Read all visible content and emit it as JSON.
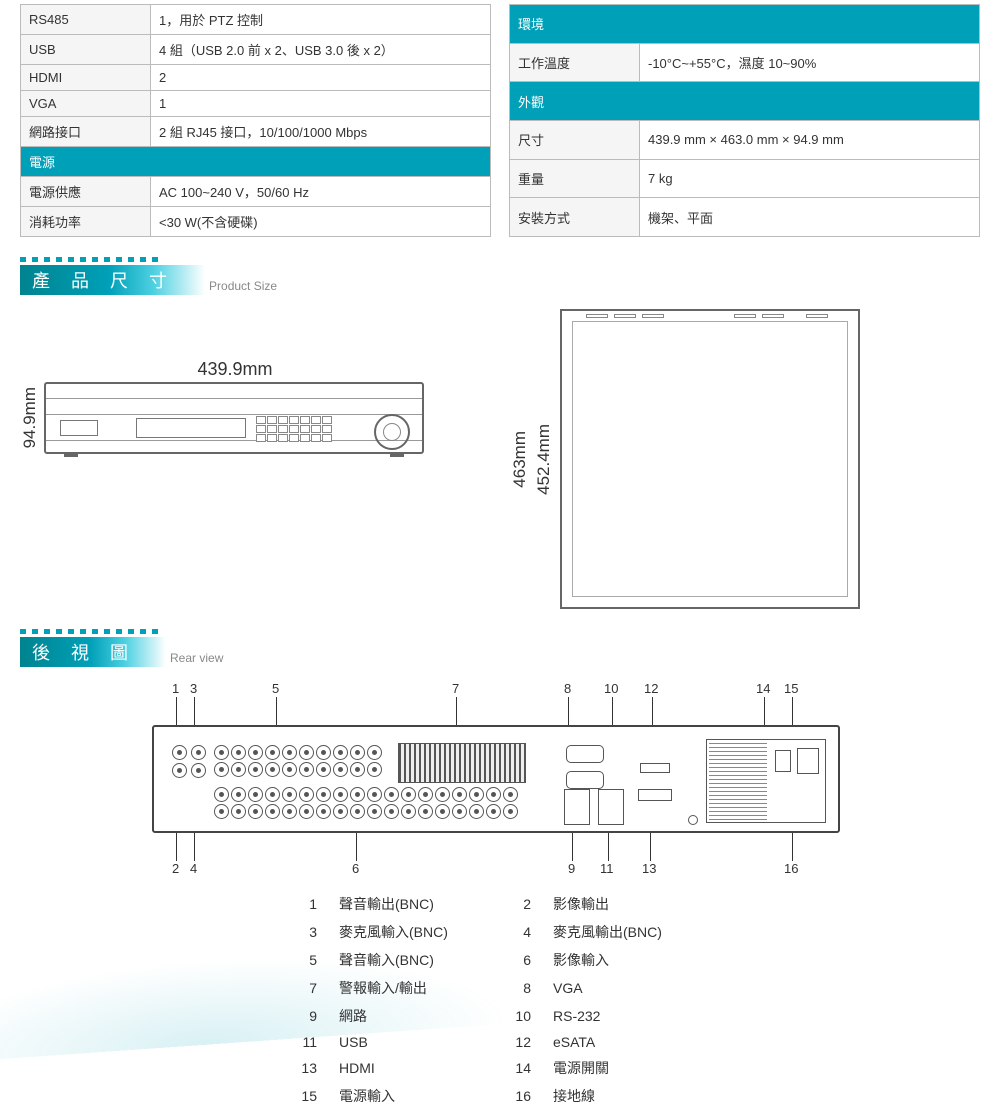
{
  "colors": {
    "accent": "#00a0b8",
    "border": "#bbbbbb",
    "header_text": "#ffffff"
  },
  "left_table": {
    "rows": [
      {
        "label": "RS485",
        "value": "1，用於 PTZ 控制"
      },
      {
        "label": "USB",
        "value": "4 組（USB 2.0 前 x 2、USB 3.0 後 x 2）"
      },
      {
        "label": "HDMI",
        "value": "2"
      },
      {
        "label": "VGA",
        "value": "1"
      },
      {
        "label": "網路接口",
        "value": "2 組 RJ45 接口，10/100/1000 Mbps"
      }
    ],
    "section": "電源",
    "rows2": [
      {
        "label": "電源供應",
        "value": "AC 100~240 V，50/60 Hz"
      },
      {
        "label": "消耗功率",
        "value": "<30 W(不含硬碟)"
      }
    ]
  },
  "right_table": {
    "section1": "環境",
    "rows1": [
      {
        "label": "工作溫度",
        "value": "-10°C~+55°C，濕度 10~90%"
      }
    ],
    "section2": "外觀",
    "rows2": [
      {
        "label": "尺寸",
        "value": "439.9 mm × 463.0 mm × 94.9 mm"
      },
      {
        "label": "重量",
        "value": "7 kg"
      },
      {
        "label": "安裝方式",
        "value": "機架、平面"
      }
    ]
  },
  "banner1": {
    "title": "產 品 尺 寸",
    "sub": "Product Size"
  },
  "dims": {
    "width": "439.9mm",
    "height": "94.9mm",
    "depth1": "463mm",
    "depth2": "452.4mm"
  },
  "banner2": {
    "title": "後 視 圖",
    "sub": "Rear view"
  },
  "callouts_top": {
    "c1": "1",
    "c3": "3",
    "c5": "5",
    "c7": "7",
    "c8": "8",
    "c10": "10",
    "c12": "12",
    "c14": "14",
    "c15": "15"
  },
  "callouts_bot": {
    "c2": "2",
    "c4": "4",
    "c6": "6",
    "c9": "9",
    "c11": "11",
    "c13": "13",
    "c16": "16"
  },
  "legend": [
    {
      "n1": "1",
      "t1": "聲音輸出(BNC)",
      "n2": "2",
      "t2": "影像輸出"
    },
    {
      "n1": "3",
      "t1": "麥克風輸入(BNC)",
      "n2": "4",
      "t2": "麥克風輸出(BNC)"
    },
    {
      "n1": "5",
      "t1": "聲音輸入(BNC)",
      "n2": "6",
      "t2": "影像輸入"
    },
    {
      "n1": "7",
      "t1": "警報輸入/輸出",
      "n2": "8",
      "t2": "VGA"
    },
    {
      "n1": "9",
      "t1": "網路",
      "n2": "10",
      "t2": "RS-232"
    },
    {
      "n1": "11",
      "t1": "USB",
      "n2": "12",
      "t2": "eSATA"
    },
    {
      "n1": "13",
      "t1": "HDMI",
      "n2": "14",
      "t2": "電源開關"
    },
    {
      "n1": "15",
      "t1": "電源輸入",
      "n2": "16",
      "t2": "接地線"
    }
  ]
}
